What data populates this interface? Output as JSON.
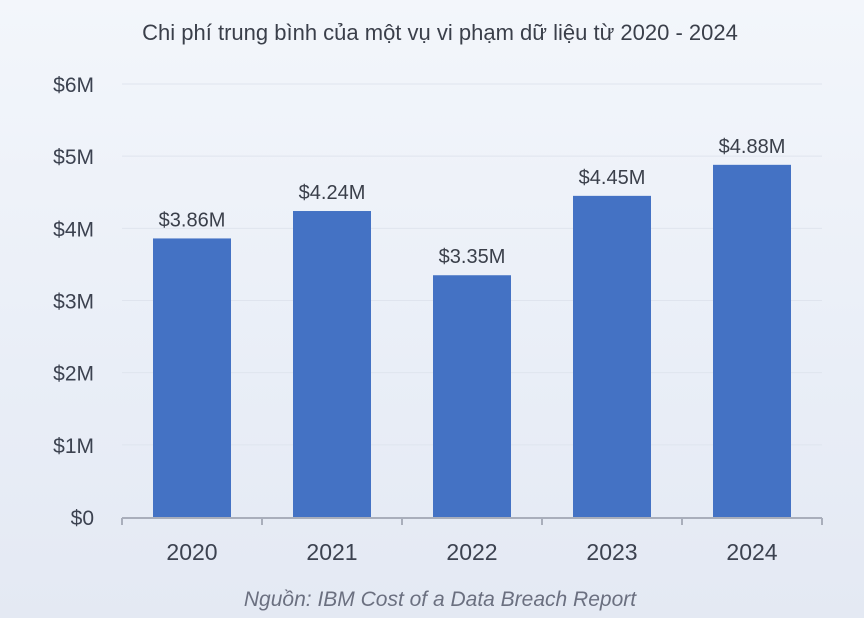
{
  "chart_data": {
    "type": "bar",
    "title": "Chi phí trung bình của một vụ vi phạm dữ liệu từ 2020 - 2024",
    "categories": [
      "2020",
      "2021",
      "2022",
      "2023",
      "2024"
    ],
    "values": [
      3.86,
      4.24,
      3.35,
      4.45,
      4.88
    ],
    "data_labels": [
      "$3.86M",
      "$4.24M",
      "$3.35M",
      "$4.45M",
      "$4.88M"
    ],
    "y_ticks": [
      0,
      1,
      2,
      3,
      4,
      5,
      6
    ],
    "y_tick_labels": [
      "$0",
      "$1M",
      "$2M",
      "$3M",
      "$4M",
      "$5M",
      "$6M"
    ],
    "ylim": [
      0,
      6
    ],
    "xlabel": "",
    "ylabel": "",
    "grid": true,
    "legend": "none",
    "bar_color": "#4472c4",
    "source": "Nguồn: IBM Cost of a Data Breach Report"
  }
}
